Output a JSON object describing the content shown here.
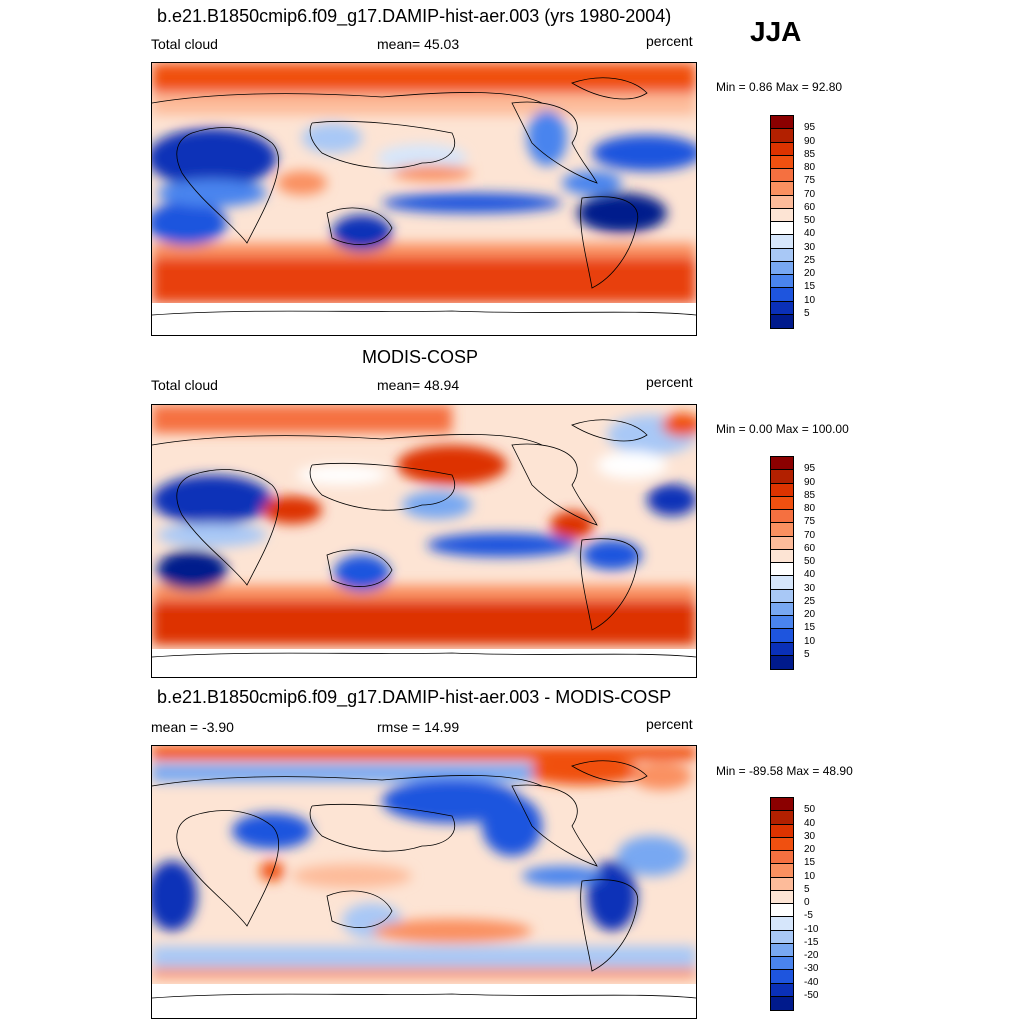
{
  "season": "JJA",
  "panels": [
    {
      "title": "b.e21.B1850cmip6.f09_g17.DAMIP-hist-aer.003 (yrs 1980-2004)",
      "left_label": "Total cloud",
      "center_label": "mean=  45.03",
      "units": "percent",
      "minmax": "Min =   0.86 Max =  92.80",
      "colorbar": {
        "labels": [
          "95",
          "90",
          "85",
          "80",
          "75",
          "70",
          "60",
          "50",
          "40",
          "30",
          "25",
          "20",
          "15",
          "10",
          "5"
        ],
        "colors": [
          "#8b0000",
          "#b22000",
          "#dd3300",
          "#f05010",
          "#f57040",
          "#fa9060",
          "#fdbb9a",
          "#fde4d4",
          "#ffffff",
          "#d6e6fb",
          "#a8c8f6",
          "#78a8f2",
          "#4a84ee",
          "#1e55de",
          "#0a30b8",
          "#001a8c"
        ]
      }
    },
    {
      "title": "MODIS-COSP",
      "left_label": "Total cloud",
      "center_label": "mean=  48.94",
      "units": "percent",
      "minmax": "Min =   0.00 Max = 100.00",
      "colorbar": {
        "labels": [
          "95",
          "90",
          "85",
          "80",
          "75",
          "70",
          "60",
          "50",
          "40",
          "30",
          "25",
          "20",
          "15",
          "10",
          "5"
        ],
        "colors": [
          "#8b0000",
          "#b22000",
          "#dd3300",
          "#f05010",
          "#f57040",
          "#fa9060",
          "#fdbb9a",
          "#fde4d4",
          "#ffffff",
          "#d6e6fb",
          "#a8c8f6",
          "#78a8f2",
          "#4a84ee",
          "#1e55de",
          "#0a30b8",
          "#001a8c"
        ]
      }
    },
    {
      "title": "b.e21.B1850cmip6.f09_g17.DAMIP-hist-aer.003 - MODIS-COSP",
      "left_label": "mean =  -3.90",
      "center_label": "rmse =  14.99",
      "units": "percent",
      "minmax": "Min = -89.58 Max =  48.90",
      "colorbar": {
        "labels": [
          "50",
          "40",
          "30",
          "20",
          "15",
          "10",
          "5",
          "0",
          "-5",
          "-10",
          "-15",
          "-20",
          "-30",
          "-40",
          "-50"
        ],
        "colors": [
          "#8b0000",
          "#b22000",
          "#dd3300",
          "#f05010",
          "#f57040",
          "#fa9060",
          "#fdbb9a",
          "#fde4d4",
          "#ffffff",
          "#d6e6fb",
          "#a8c8f6",
          "#78a8f2",
          "#4a84ee",
          "#1e55de",
          "#0a30b8",
          "#001a8c"
        ]
      }
    }
  ]
}
